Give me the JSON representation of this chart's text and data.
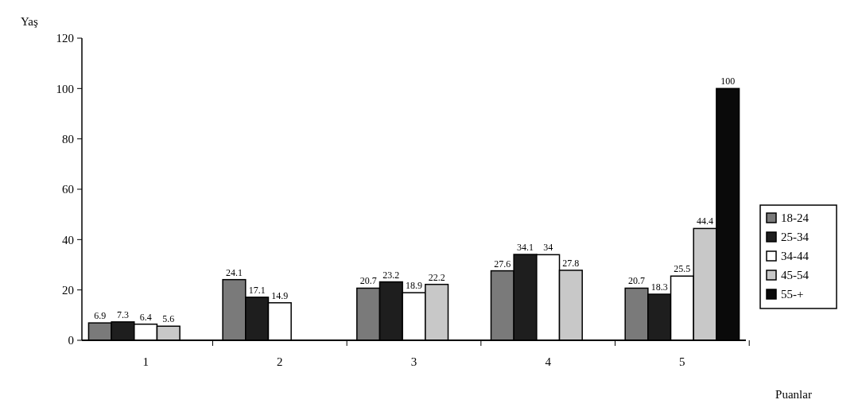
{
  "chart_data": {
    "type": "bar",
    "xlabel": "Puanlar",
    "ylabel": "Yaş",
    "categories": [
      "1",
      "2",
      "3",
      "4",
      "5"
    ],
    "series": [
      {
        "name": "18-24",
        "color": "#7a7a7a",
        "values": [
          6.9,
          24.1,
          20.7,
          27.6,
          20.7
        ]
      },
      {
        "name": "25-34",
        "color": "#1e1e1e",
        "values": [
          7.3,
          17.1,
          23.2,
          34.1,
          18.3
        ]
      },
      {
        "name": "34-44",
        "color": "#ffffff",
        "values": [
          6.4,
          14.9,
          18.9,
          34,
          25.5
        ]
      },
      {
        "name": "45-54",
        "color": "#c8c8c8",
        "values": [
          5.6,
          null,
          22.2,
          27.8,
          44.4
        ]
      },
      {
        "name": "55-+",
        "color": "#0a0a0a",
        "values": [
          null,
          null,
          null,
          null,
          100
        ]
      }
    ],
    "ylim": [
      0,
      120
    ],
    "yticks": [
      0,
      20,
      40,
      60,
      80,
      100,
      120
    ],
    "grid": false,
    "legend": "right",
    "data_labels": true
  }
}
